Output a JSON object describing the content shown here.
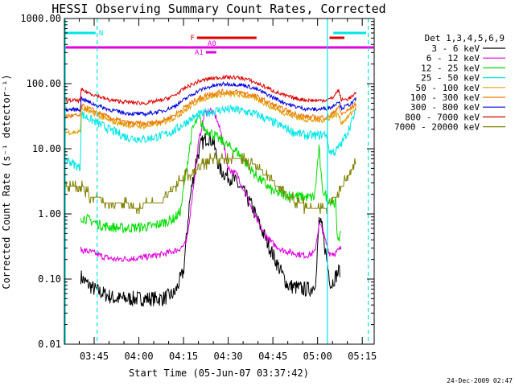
{
  "chart_data": {
    "type": "line",
    "title": "HESSI Observing Summary Count Rates, Corrected",
    "xlabel": "Start Time (05-Jun-07 03:37:42)",
    "ylabel": "Corrected Count Rate (s⁻¹ detector⁻¹)",
    "ylog": true,
    "ylim": [
      0.01,
      1000
    ],
    "xlim_minutes": [
      215,
      319
    ],
    "y_ticks": [
      "1000.00",
      "100.00",
      "10.00",
      "1.00",
      "0.10",
      "0.01"
    ],
    "x_ticks": [
      {
        "label": "03:45",
        "t": 225
      },
      {
        "label": "04:00",
        "t": 240
      },
      {
        "label": "04:15",
        "t": 255
      },
      {
        "label": "04:30",
        "t": 270
      },
      {
        "label": "04:45",
        "t": 285
      },
      {
        "label": "05:00",
        "t": 300
      },
      {
        "label": "05:15",
        "t": 315
      }
    ],
    "legend_header": "Det 1,3,4,5,6,9",
    "legend_position": "right",
    "flags": [
      {
        "label": "N",
        "color": "#00e5e5",
        "segments": [
          [
            215.2,
            225.5
          ],
          [
            305.3,
            316.3
          ]
        ]
      },
      {
        "label": "",
        "color": "#e000e0",
        "segments": [
          [
            215.2,
            318.8
          ]
        ]
      },
      {
        "label": "F",
        "color": "#e00000",
        "segments": [
          [
            259.5,
            279.5
          ],
          [
            304,
            309
          ]
        ]
      },
      {
        "label": "A0",
        "color": "#e000e0",
        "segments": [
          [
            262.5,
            267
          ]
        ]
      },
      {
        "label": "A1",
        "color": "#e000e0",
        "segments": [
          [
            262.5,
            266
          ]
        ]
      }
    ],
    "vlines": [
      {
        "t": 215.3,
        "style": "solid",
        "color": "#00e5e5"
      },
      {
        "t": 226,
        "style": "dashed",
        "color": "#00e5e5"
      },
      {
        "t": 303.3,
        "style": "solid",
        "color": "#00e5e5"
      },
      {
        "t": 317,
        "style": "dashed",
        "color": "#00e5e5"
      }
    ],
    "series": [
      {
        "name": "3 - 6 keV",
        "color": "#000000",
        "noise": 0.12,
        "points": [
          [
            220.5,
            0.11
          ],
          [
            222,
            0.09
          ],
          [
            225,
            0.07
          ],
          [
            228,
            0.06
          ],
          [
            232,
            0.05
          ],
          [
            240,
            0.05
          ],
          [
            248,
            0.05
          ],
          [
            252,
            0.06
          ],
          [
            255,
            0.13
          ],
          [
            257,
            1.5
          ],
          [
            259,
            6
          ],
          [
            261,
            12
          ],
          [
            263,
            15
          ],
          [
            265,
            13
          ],
          [
            267,
            5
          ],
          [
            269,
            4
          ],
          [
            272,
            3.3
          ],
          [
            275,
            2.2
          ],
          [
            278,
            1.3
          ],
          [
            281,
            0.6
          ],
          [
            284,
            0.3
          ],
          [
            287,
            0.15
          ],
          [
            290,
            0.08
          ],
          [
            295,
            0.07
          ],
          [
            298,
            0.07
          ],
          [
            299.5,
            0.1
          ],
          [
            300.5,
            0.8
          ],
          [
            301.5,
            0.6
          ],
          [
            302.5,
            0.3
          ],
          [
            303.5,
            0.15
          ],
          [
            304.5,
            0.08
          ],
          [
            305.5,
            0.1
          ],
          [
            307.5,
            0.14
          ]
        ]
      },
      {
        "name": "6 - 12 keV",
        "color": "#e000e0",
        "noise": 0.05,
        "points": [
          [
            220.5,
            0.28
          ],
          [
            224,
            0.26
          ],
          [
            228,
            0.22
          ],
          [
            232,
            0.2
          ],
          [
            240,
            0.21
          ],
          [
            248,
            0.24
          ],
          [
            253,
            0.28
          ],
          [
            256,
            0.35
          ],
          [
            258,
            2
          ],
          [
            260,
            12
          ],
          [
            262,
            35
          ],
          [
            264,
            40
          ],
          [
            266,
            30
          ],
          [
            268,
            15
          ],
          [
            270,
            5
          ],
          [
            273,
            4
          ],
          [
            276,
            2
          ],
          [
            279,
            0.9
          ],
          [
            282,
            0.5
          ],
          [
            285,
            0.35
          ],
          [
            288,
            0.28
          ],
          [
            292,
            0.25
          ],
          [
            296,
            0.23
          ],
          [
            299,
            0.25
          ],
          [
            300.5,
            0.7
          ],
          [
            301.5,
            0.6
          ],
          [
            302.5,
            0.4
          ],
          [
            304,
            0.25
          ],
          [
            306,
            0.25
          ],
          [
            308,
            0.3
          ]
        ]
      },
      {
        "name": "12 - 25 keV",
        "color": "#00dd00",
        "noise": 0.08,
        "points": [
          [
            220.5,
            0.9
          ],
          [
            222,
            0.85
          ],
          [
            225,
            0.75
          ],
          [
            228,
            0.65
          ],
          [
            235,
            0.6
          ],
          [
            245,
            0.65
          ],
          [
            252,
            0.85
          ],
          [
            254,
            1.1
          ],
          [
            256,
            5
          ],
          [
            258,
            20
          ],
          [
            260,
            30
          ],
          [
            262,
            20
          ],
          [
            264,
            18
          ],
          [
            267,
            14
          ],
          [
            270,
            11
          ],
          [
            273,
            9
          ],
          [
            276,
            6
          ],
          [
            279,
            4
          ],
          [
            282,
            3
          ],
          [
            285,
            2.2
          ],
          [
            288,
            2
          ],
          [
            292,
            1.9
          ],
          [
            296,
            1.8
          ],
          [
            299,
            1.8
          ],
          [
            300,
            6
          ],
          [
            300.5,
            10
          ],
          [
            301.5,
            2.5
          ],
          [
            303,
            1.8
          ],
          [
            305,
            1.5
          ],
          [
            306.2,
            1.5
          ],
          [
            306.4,
            0.45
          ],
          [
            308,
            0.45
          ]
        ]
      },
      {
        "name": "25 - 50 keV",
        "color": "#00e5e5",
        "noise": 0.07,
        "points": [
          [
            215.3,
            7
          ],
          [
            216.5,
            6.5
          ],
          [
            219,
            5.5
          ],
          [
            220.4,
            5
          ],
          [
            220.6,
            34
          ],
          [
            224,
            28
          ],
          [
            230,
            20
          ],
          [
            236,
            15
          ],
          [
            242,
            14
          ],
          [
            248,
            16
          ],
          [
            252,
            19
          ],
          [
            256,
            26
          ],
          [
            260,
            33
          ],
          [
            264,
            37
          ],
          [
            268,
            40
          ],
          [
            272,
            40
          ],
          [
            276,
            37
          ],
          [
            280,
            33
          ],
          [
            284,
            27
          ],
          [
            288,
            22
          ],
          [
            292,
            18
          ],
          [
            296,
            16
          ],
          [
            300,
            16
          ],
          [
            303,
            17
          ],
          [
            304,
            9
          ],
          [
            306,
            9
          ],
          [
            308,
            12
          ],
          [
            310,
            18
          ],
          [
            312,
            30
          ],
          [
            313,
            40
          ]
        ]
      },
      {
        "name": "50 - 100 keV",
        "color": "#e0a000",
        "noise": 0.04,
        "points": [
          [
            215.3,
            18
          ],
          [
            220.4,
            18
          ],
          [
            220.6,
            42
          ],
          [
            224,
            36
          ],
          [
            230,
            27
          ],
          [
            236,
            23
          ],
          [
            242,
            22
          ],
          [
            248,
            25
          ],
          [
            252,
            30
          ],
          [
            256,
            40
          ],
          [
            260,
            55
          ],
          [
            264,
            63
          ],
          [
            268,
            68
          ],
          [
            272,
            68
          ],
          [
            276,
            65
          ],
          [
            280,
            57
          ],
          [
            284,
            45
          ],
          [
            288,
            37
          ],
          [
            292,
            31
          ],
          [
            296,
            28
          ],
          [
            300,
            27
          ],
          [
            303,
            28
          ],
          [
            305,
            32
          ],
          [
            307,
            34
          ],
          [
            308,
            25
          ],
          [
            310,
            30
          ],
          [
            312,
            38
          ],
          [
            313,
            45
          ]
        ]
      },
      {
        "name": "100 - 300 keV",
        "color": "#ee7700",
        "noise": 0.04,
        "points": [
          [
            215.3,
            32
          ],
          [
            220.4,
            32
          ],
          [
            220.6,
            46
          ],
          [
            224,
            40
          ],
          [
            230,
            30
          ],
          [
            236,
            25
          ],
          [
            242,
            24
          ],
          [
            248,
            27
          ],
          [
            252,
            33
          ],
          [
            256,
            45
          ],
          [
            260,
            60
          ],
          [
            264,
            70
          ],
          [
            268,
            75
          ],
          [
            272,
            75
          ],
          [
            276,
            71
          ],
          [
            280,
            62
          ],
          [
            284,
            50
          ],
          [
            288,
            41
          ],
          [
            292,
            35
          ],
          [
            296,
            31
          ],
          [
            300,
            30
          ],
          [
            303,
            31
          ],
          [
            305,
            34
          ],
          [
            307,
            45
          ],
          [
            308,
            34
          ],
          [
            310,
            38
          ],
          [
            312,
            45
          ],
          [
            313,
            52
          ]
        ]
      },
      {
        "name": "300 - 800 keV",
        "color": "#0000dd",
        "noise": 0.03,
        "points": [
          [
            215.3,
            40
          ],
          [
            220.4,
            40
          ],
          [
            220.6,
            60
          ],
          [
            224,
            50
          ],
          [
            230,
            40
          ],
          [
            236,
            35
          ],
          [
            242,
            34
          ],
          [
            248,
            38
          ],
          [
            252,
            45
          ],
          [
            256,
            60
          ],
          [
            260,
            78
          ],
          [
            264,
            90
          ],
          [
            268,
            98
          ],
          [
            272,
            98
          ],
          [
            276,
            93
          ],
          [
            280,
            80
          ],
          [
            284,
            65
          ],
          [
            288,
            53
          ],
          [
            292,
            45
          ],
          [
            296,
            41
          ],
          [
            300,
            40
          ],
          [
            303,
            42
          ],
          [
            305,
            44
          ],
          [
            307,
            55
          ],
          [
            308,
            42
          ],
          [
            310,
            46
          ],
          [
            312,
            52
          ],
          [
            313,
            60
          ]
        ]
      },
      {
        "name": "800 - 7000 keV",
        "color": "#dd0000",
        "noise": 0.03,
        "points": [
          [
            215.3,
            55
          ],
          [
            220.4,
            55
          ],
          [
            220.6,
            80
          ],
          [
            224,
            70
          ],
          [
            230,
            56
          ],
          [
            236,
            52
          ],
          [
            242,
            50
          ],
          [
            248,
            56
          ],
          [
            252,
            66
          ],
          [
            256,
            88
          ],
          [
            260,
            108
          ],
          [
            264,
            120
          ],
          [
            268,
            125
          ],
          [
            272,
            125
          ],
          [
            276,
            118
          ],
          [
            280,
            100
          ],
          [
            284,
            82
          ],
          [
            288,
            68
          ],
          [
            292,
            60
          ],
          [
            296,
            56
          ],
          [
            300,
            55
          ],
          [
            303,
            56
          ],
          [
            305,
            60
          ],
          [
            307,
            80
          ],
          [
            308,
            56
          ],
          [
            310,
            58
          ],
          [
            312,
            65
          ],
          [
            313,
            70
          ]
        ]
      },
      {
        "name": "7000 - 20000 keV",
        "color": "#808000",
        "noise": 0.0,
        "points": [
          [
            215.3,
            2.8
          ],
          [
            219,
            2.5
          ],
          [
            220.4,
            2.2
          ],
          [
            220.6,
            2.8
          ],
          [
            222,
            2.3
          ],
          [
            224,
            1.8
          ],
          [
            228,
            1.6
          ],
          [
            232,
            1.4
          ],
          [
            240,
            1.3
          ],
          [
            248,
            1.6
          ],
          [
            252,
            2.6
          ],
          [
            256,
            3.8
          ],
          [
            260,
            5
          ],
          [
            264,
            6.5
          ],
          [
            268,
            7.5
          ],
          [
            272,
            7.5
          ],
          [
            276,
            6.5
          ],
          [
            280,
            5
          ],
          [
            284,
            3.5
          ],
          [
            288,
            2.3
          ],
          [
            292,
            1.6
          ],
          [
            296,
            1.3
          ],
          [
            300,
            1.2
          ],
          [
            303,
            1.3
          ],
          [
            306,
            1.8
          ],
          [
            308,
            2.5
          ],
          [
            310,
            3.5
          ],
          [
            312,
            5
          ],
          [
            313,
            6.5
          ]
        ]
      }
    ]
  },
  "corner_date": "24-Dec-2009 02:47"
}
